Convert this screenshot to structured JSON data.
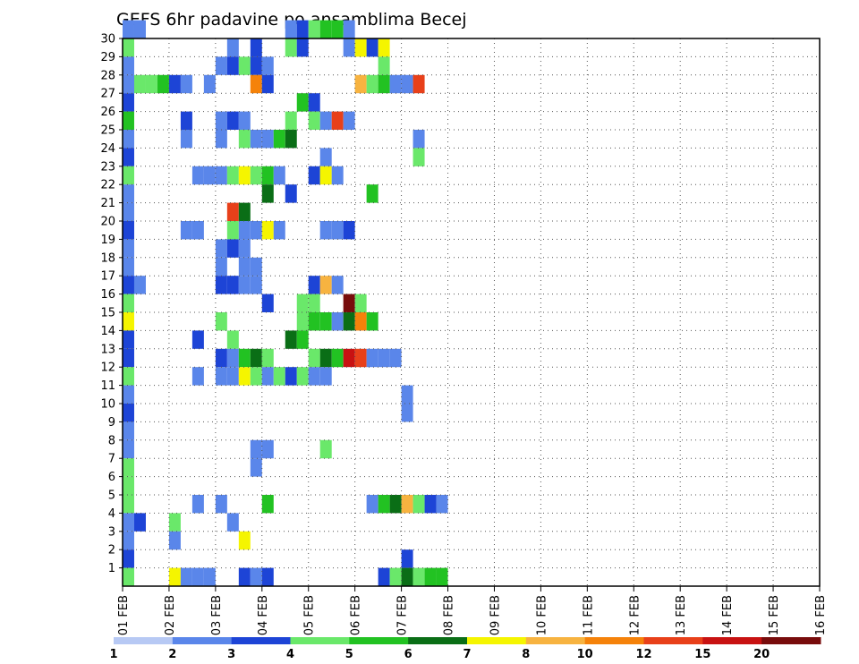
{
  "chart_data": {
    "type": "heatmap",
    "title": "GEFS 6hr padavine po ansamblima Becej",
    "xlabel": "",
    "ylabel": "",
    "x_ticks": [
      "01 FEB",
      "02 FEB",
      "03 FEB",
      "04 FEB",
      "05 FEB",
      "06 FEB",
      "07 FEB",
      "08 FEB",
      "09 FEB",
      "10 FEB",
      "11 FEB",
      "12 FEB",
      "13 FEB",
      "14 FEB",
      "15 FEB",
      "16 FEB"
    ],
    "y_ticks": [
      "1",
      "2",
      "3",
      "4",
      "5",
      "6",
      "7",
      "8",
      "9",
      "10",
      "11",
      "12",
      "13",
      "14",
      "15",
      "16",
      "17",
      "18",
      "19",
      "20",
      "21",
      "22",
      "23",
      "24",
      "25",
      "26",
      "27",
      "28",
      "29",
      "30"
    ],
    "x_range_days": [
      0,
      15
    ],
    "y_range_members": [
      0,
      30
    ],
    "grid": true,
    "colorbar": {
      "levels": [
        1,
        2,
        3,
        4,
        5,
        6,
        7,
        8,
        10,
        12,
        15,
        20
      ],
      "labels": [
        "1",
        "2",
        "3",
        "4",
        "5",
        "6",
        "7",
        "8",
        "10",
        "12",
        "15",
        "20"
      ],
      "colors": [
        "#b7c9f4",
        "#5a86ea",
        "#1d44d6",
        "#6ae86a",
        "#22c222",
        "#0a6e16",
        "#f5f500",
        "#f7b340",
        "#f5820a",
        "#e8401a",
        "#c81212",
        "#780c0c"
      ]
    },
    "cells": [
      [
        0,
        30,
        1
      ],
      [
        0,
        29,
        3
      ],
      [
        0,
        28,
        1
      ],
      [
        0,
        27,
        1
      ],
      [
        0,
        26,
        2
      ],
      [
        0,
        25,
        4
      ],
      [
        0,
        24,
        1
      ],
      [
        0,
        23,
        2
      ],
      [
        0,
        22,
        3
      ],
      [
        0,
        21,
        1
      ],
      [
        0,
        20,
        1
      ],
      [
        0,
        19,
        2
      ],
      [
        0,
        18,
        1
      ],
      [
        0,
        17,
        1
      ],
      [
        0,
        16,
        2
      ],
      [
        0,
        15,
        3
      ],
      [
        0,
        14,
        6
      ],
      [
        0,
        13,
        2
      ],
      [
        0,
        12,
        2
      ],
      [
        0,
        11,
        3
      ],
      [
        0,
        10,
        1
      ],
      [
        0,
        9,
        2
      ],
      [
        0,
        8,
        1
      ],
      [
        0,
        7,
        1
      ],
      [
        0,
        6,
        3
      ],
      [
        0,
        5,
        3
      ],
      [
        0,
        4,
        3
      ],
      [
        0,
        3,
        1
      ],
      [
        0,
        2,
        1
      ],
      [
        0,
        1,
        2
      ],
      [
        0,
        0,
        3
      ],
      [
        1,
        30,
        1
      ],
      [
        1,
        16,
        1
      ],
      [
        1,
        3,
        2
      ],
      [
        14,
        30,
        1
      ],
      [
        15,
        30,
        2
      ],
      [
        16,
        30,
        3
      ],
      [
        17,
        30,
        4
      ],
      [
        18,
        30,
        4
      ],
      [
        19,
        30,
        1
      ],
      [
        9,
        29,
        1
      ],
      [
        11,
        29,
        2
      ],
      [
        14,
        29,
        3
      ],
      [
        15,
        29,
        2
      ],
      [
        19,
        29,
        1
      ],
      [
        20,
        29,
        6
      ],
      [
        21,
        29,
        2
      ],
      [
        22,
        29,
        6
      ],
      [
        8,
        28,
        1
      ],
      [
        9,
        28,
        2
      ],
      [
        10,
        28,
        3
      ],
      [
        11,
        28,
        2
      ],
      [
        12,
        28,
        1
      ],
      [
        22,
        28,
        3
      ],
      [
        0,
        27,
        1
      ],
      [
        1,
        27,
        3
      ],
      [
        2,
        27,
        3
      ],
      [
        3,
        27,
        4
      ],
      [
        4,
        27,
        2
      ],
      [
        5,
        27,
        1
      ],
      [
        7,
        27,
        1
      ],
      [
        11,
        27,
        8
      ],
      [
        12,
        27,
        2
      ],
      [
        20,
        27,
        7
      ],
      [
        21,
        27,
        3
      ],
      [
        22,
        27,
        4
      ],
      [
        23,
        27,
        1
      ],
      [
        24,
        27,
        1
      ],
      [
        25,
        27,
        9
      ],
      [
        15,
        26,
        4
      ],
      [
        16,
        26,
        2
      ],
      [
        5,
        25,
        2
      ],
      [
        8,
        25,
        1
      ],
      [
        9,
        25,
        2
      ],
      [
        10,
        25,
        1
      ],
      [
        14,
        25,
        3
      ],
      [
        16,
        25,
        3
      ],
      [
        17,
        25,
        1
      ],
      [
        18,
        25,
        9
      ],
      [
        19,
        25,
        1
      ],
      [
        5,
        24,
        1
      ],
      [
        8,
        24,
        1
      ],
      [
        10,
        24,
        3
      ],
      [
        11,
        24,
        1
      ],
      [
        12,
        24,
        1
      ],
      [
        13,
        24,
        4
      ],
      [
        14,
        24,
        5
      ],
      [
        25,
        24,
        1
      ],
      [
        17,
        23,
        1
      ],
      [
        25,
        23,
        3
      ],
      [
        6,
        22,
        1
      ],
      [
        7,
        22,
        1
      ],
      [
        8,
        22,
        1
      ],
      [
        9,
        22,
        3
      ],
      [
        10,
        22,
        6
      ],
      [
        11,
        22,
        3
      ],
      [
        12,
        22,
        4
      ],
      [
        13,
        22,
        1
      ],
      [
        16,
        22,
        2
      ],
      [
        17,
        22,
        6
      ],
      [
        18,
        22,
        1
      ],
      [
        12,
        21,
        5
      ],
      [
        14,
        21,
        2
      ],
      [
        21,
        21,
        4
      ],
      [
        9,
        20,
        9
      ],
      [
        10,
        20,
        5
      ],
      [
        5,
        19,
        1
      ],
      [
        6,
        19,
        1
      ],
      [
        9,
        19,
        3
      ],
      [
        10,
        19,
        1
      ],
      [
        11,
        19,
        1
      ],
      [
        12,
        19,
        6
      ],
      [
        13,
        19,
        1
      ],
      [
        17,
        19,
        1
      ],
      [
        18,
        19,
        1
      ],
      [
        19,
        19,
        2
      ],
      [
        8,
        18,
        1
      ],
      [
        9,
        18,
        2
      ],
      [
        10,
        18,
        1
      ],
      [
        8,
        17,
        1
      ],
      [
        10,
        17,
        1
      ],
      [
        11,
        17,
        1
      ],
      [
        8,
        16,
        2
      ],
      [
        9,
        16,
        2
      ],
      [
        10,
        16,
        1
      ],
      [
        11,
        16,
        1
      ],
      [
        16,
        16,
        2
      ],
      [
        17,
        16,
        7
      ],
      [
        18,
        16,
        1
      ],
      [
        12,
        15,
        2
      ],
      [
        15,
        15,
        3
      ],
      [
        16,
        15,
        3
      ],
      [
        19,
        15,
        11
      ],
      [
        20,
        15,
        3
      ],
      [
        8,
        14,
        3
      ],
      [
        15,
        14,
        3
      ],
      [
        16,
        14,
        4
      ],
      [
        17,
        14,
        4
      ],
      [
        18,
        14,
        1
      ],
      [
        19,
        14,
        5
      ],
      [
        20,
        14,
        8
      ],
      [
        21,
        14,
        4
      ],
      [
        6,
        13,
        2
      ],
      [
        9,
        13,
        3
      ],
      [
        14,
        13,
        5
      ],
      [
        15,
        13,
        4
      ],
      [
        8,
        12,
        2
      ],
      [
        9,
        12,
        1
      ],
      [
        10,
        12,
        4
      ],
      [
        11,
        12,
        5
      ],
      [
        12,
        12,
        3
      ],
      [
        16,
        12,
        3
      ],
      [
        17,
        12,
        5
      ],
      [
        18,
        12,
        4
      ],
      [
        19,
        12,
        10
      ],
      [
        20,
        12,
        9
      ],
      [
        21,
        12,
        1
      ],
      [
        22,
        12,
        1
      ],
      [
        23,
        12,
        1
      ],
      [
        6,
        11,
        1
      ],
      [
        8,
        11,
        1
      ],
      [
        9,
        11,
        1
      ],
      [
        10,
        11,
        6
      ],
      [
        11,
        11,
        3
      ],
      [
        12,
        11,
        1
      ],
      [
        13,
        11,
        3
      ],
      [
        14,
        11,
        2
      ],
      [
        15,
        11,
        3
      ],
      [
        16,
        11,
        1
      ],
      [
        17,
        11,
        1
      ],
      [
        24,
        9,
        1
      ],
      [
        24,
        10,
        1
      ],
      [
        11,
        7,
        1
      ],
      [
        12,
        7,
        1
      ],
      [
        17,
        7,
        3
      ],
      [
        11,
        6,
        1
      ],
      [
        6,
        4,
        1
      ],
      [
        8,
        4,
        1
      ],
      [
        12,
        4,
        4
      ],
      [
        21,
        4,
        1
      ],
      [
        22,
        4,
        4
      ],
      [
        23,
        4,
        5
      ],
      [
        24,
        4,
        7
      ],
      [
        25,
        4,
        3
      ],
      [
        26,
        4,
        2
      ],
      [
        27,
        4,
        1
      ],
      [
        4,
        3,
        3
      ],
      [
        9,
        3,
        1
      ],
      [
        10,
        2,
        6
      ],
      [
        4,
        2,
        1
      ],
      [
        24,
        1,
        2
      ],
      [
        4,
        0,
        6
      ],
      [
        5,
        0,
        1
      ],
      [
        6,
        0,
        1
      ],
      [
        7,
        0,
        1
      ],
      [
        10,
        0,
        2
      ],
      [
        11,
        0,
        1
      ],
      [
        12,
        0,
        2
      ],
      [
        22,
        0,
        2
      ],
      [
        23,
        0,
        3
      ],
      [
        24,
        0,
        5
      ],
      [
        25,
        0,
        3
      ],
      [
        26,
        0,
        4
      ],
      [
        27,
        0,
        4
      ]
    ]
  }
}
